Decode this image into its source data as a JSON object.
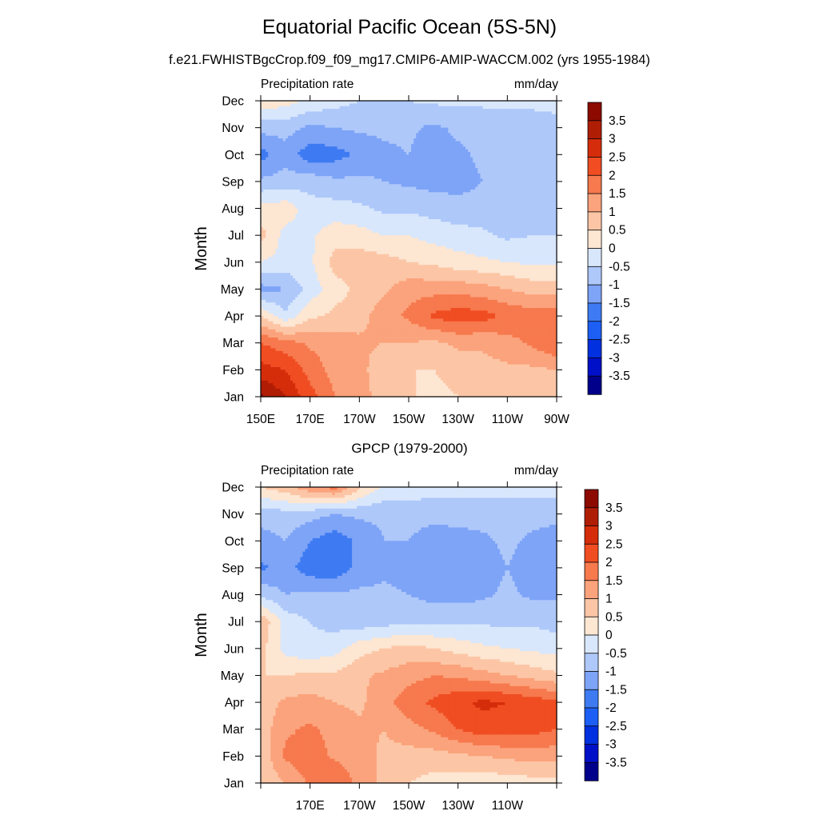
{
  "figure": {
    "title": "Equatorial Pacific Ocean (5S-5N)",
    "subtitle": "f.e21.FWHISTBgcCrop.f09_f09_mg17.CMIP6-AMIP-WACCM.002 (yrs 1955-1984)"
  },
  "colors": {
    "levels": [
      "#00008b",
      "#0010c8",
      "#0030e0",
      "#1d5ff5",
      "#3e7bf2",
      "#7ea4f7",
      "#aec8fa",
      "#d8e7fc",
      "#fde6d2",
      "#fcc6a6",
      "#fba37c",
      "#f7794e",
      "#f04d22",
      "#d52d0b",
      "#b01d05",
      "#8c0a00"
    ]
  },
  "chart_data": [
    {
      "type": "heatmap",
      "panel_title": "",
      "left_label": "Precipitation rate",
      "right_label": "mm/day",
      "ylabel": "Month",
      "x_ticks": [
        "150E",
        "170E",
        "170W",
        "150W",
        "130W",
        "110W",
        "90W"
      ],
      "x_range": [
        150,
        270
      ],
      "y_ticks": [
        "Jan",
        "Feb",
        "Mar",
        "Apr",
        "May",
        "Jun",
        "Jul",
        "Aug",
        "Sep",
        "Oct",
        "Nov",
        "Dec"
      ],
      "colorbar_labels": [
        "3.5",
        "3",
        "2.5",
        "2",
        "1.5",
        "1",
        "0.5",
        "0",
        "-0.5",
        "-1",
        "-1.5",
        "-2",
        "-2.5",
        "-3",
        "-3.5"
      ],
      "x": [
        150,
        160,
        170,
        180,
        190,
        200,
        210,
        220,
        230,
        240,
        250,
        260,
        270
      ],
      "z": [
        [
          3.6,
          3.0,
          2.2,
          1.5,
          1.2,
          0.8,
          0.6,
          0.3,
          0.5,
          0.6,
          0.6,
          0.8,
          0.8
        ],
        [
          2.7,
          2.5,
          1.8,
          1.3,
          1.2,
          0.6,
          0.5,
          0.5,
          0.7,
          0.8,
          0.9,
          0.9,
          1.0
        ],
        [
          2.0,
          1.7,
          1.4,
          1.3,
          1.1,
          1.0,
          1.0,
          0.9,
          1.1,
          1.1,
          1.3,
          1.6,
          2.0
        ],
        [
          0.5,
          -0.4,
          0.4,
          0.6,
          0.8,
          1.3,
          1.6,
          2.1,
          2.3,
          2.2,
          1.9,
          1.8,
          1.9
        ],
        [
          -1.2,
          -1.0,
          -0.3,
          0.3,
          0.6,
          0.9,
          1.3,
          1.3,
          1.3,
          1.2,
          1.0,
          0.8,
          0.7
        ],
        [
          0.0,
          -0.2,
          -0.1,
          0.7,
          0.8,
          0.7,
          0.5,
          0.4,
          0.2,
          0.1,
          0.0,
          -0.1,
          -0.1
        ],
        [
          0.7,
          -0.2,
          -0.1,
          0.3,
          0.2,
          0.0,
          0.0,
          -0.2,
          -0.3,
          -0.4,
          -0.6,
          -0.5,
          -0.5
        ],
        [
          0.2,
          0.3,
          -0.3,
          -0.3,
          -0.4,
          -0.6,
          -0.6,
          -0.7,
          -0.8,
          -0.8,
          -0.8,
          -0.6,
          -0.6
        ],
        [
          -0.9,
          -0.8,
          -0.7,
          -0.9,
          -0.9,
          -1.0,
          -1.1,
          -1.2,
          -1.2,
          -1.0,
          -0.9,
          -0.8,
          -0.9
        ],
        [
          -1.7,
          -1.2,
          -1.8,
          -1.7,
          -1.4,
          -1.1,
          -1.0,
          -1.3,
          -1.1,
          -0.9,
          -0.9,
          -0.8,
          -0.7
        ],
        [
          -0.8,
          -0.8,
          -1.1,
          -1.0,
          -0.9,
          -0.9,
          -0.9,
          -1.1,
          -0.9,
          -0.8,
          -0.8,
          -0.7,
          -0.6
        ],
        [
          0.4,
          0.2,
          -0.1,
          -0.3,
          -0.5,
          -0.5,
          -0.5,
          -0.4,
          -0.4,
          -0.4,
          -0.4,
          -0.4,
          -0.4
        ]
      ]
    },
    {
      "type": "heatmap",
      "panel_title": "GPCP (1979-2000)",
      "left_label": "Precipitation rate",
      "right_label": "mm/day",
      "ylabel": "Month",
      "x_ticks": [
        "",
        "170E",
        "170W",
        "150W",
        "130W",
        "110W",
        ""
      ],
      "x_range": [
        150,
        270
      ],
      "y_ticks": [
        "Jan",
        "Feb",
        "Mar",
        "Apr",
        "May",
        "Jun",
        "Jul",
        "Aug",
        "Sep",
        "Oct",
        "Nov",
        "Dec"
      ],
      "colorbar_labels": [
        "3.5",
        "3",
        "2.5",
        "2",
        "1.5",
        "1",
        "0.5",
        "0",
        "-0.5",
        "-1",
        "-1.5",
        "-2",
        "-2.5",
        "-3",
        "-3.5"
      ],
      "x": [
        150,
        160,
        170,
        180,
        190,
        200,
        210,
        220,
        230,
        240,
        250,
        260,
        270
      ],
      "z": [
        [
          0.6,
          1.0,
          1.6,
          2.0,
          1.3,
          0.9,
          0.5,
          0.3,
          0.2,
          0.2,
          0.2,
          0.3,
          0.3
        ],
        [
          0.6,
          1.6,
          1.8,
          1.4,
          1.2,
          0.9,
          0.8,
          0.8,
          0.9,
          1.0,
          1.1,
          1.2,
          1.2
        ],
        [
          0.7,
          1.4,
          1.6,
          1.3,
          1.1,
          1.0,
          1.3,
          1.6,
          2.0,
          2.3,
          2.3,
          2.2,
          2.0
        ],
        [
          0.7,
          1.1,
          1.2,
          1.0,
          0.9,
          1.3,
          1.8,
          2.1,
          2.4,
          2.6,
          2.5,
          2.3,
          2.1
        ],
        [
          0.5,
          0.5,
          0.6,
          0.6,
          0.9,
          1.1,
          1.3,
          1.5,
          1.4,
          1.2,
          1.0,
          0.8,
          0.6
        ],
        [
          0.7,
          -0.2,
          -0.4,
          -0.2,
          0.3,
          0.5,
          0.7,
          0.5,
          0.3,
          0.1,
          0.0,
          -0.1,
          -0.2
        ],
        [
          0.9,
          -0.2,
          -0.5,
          -0.7,
          -0.8,
          -0.7,
          -0.6,
          -0.6,
          -0.6,
          -0.6,
          -0.6,
          -0.6,
          -0.7
        ],
        [
          -0.6,
          -1.0,
          -0.9,
          -0.9,
          -0.9,
          -0.9,
          -1.0,
          -1.2,
          -1.2,
          -1.1,
          -0.9,
          -1.1,
          -1.1
        ],
        [
          -1.6,
          -1.3,
          -1.8,
          -1.9,
          -1.3,
          -1.1,
          -1.2,
          -1.2,
          -1.3,
          -1.2,
          -1.0,
          -1.2,
          -1.2
        ],
        [
          -1.2,
          -1.0,
          -1.5,
          -1.8,
          -1.4,
          -1.0,
          -1.0,
          -1.3,
          -1.2,
          -1.1,
          -0.9,
          -1.1,
          -1.3
        ],
        [
          -0.8,
          -0.7,
          -0.8,
          -1.0,
          -0.9,
          -0.9,
          -0.8,
          -0.8,
          -0.8,
          -0.8,
          -0.8,
          -0.8,
          -0.8
        ],
        [
          0.5,
          0.8,
          1.4,
          1.7,
          0.6,
          -0.1,
          -0.2,
          -0.3,
          -0.3,
          -0.3,
          -0.3,
          -0.3,
          -0.3
        ]
      ]
    }
  ]
}
